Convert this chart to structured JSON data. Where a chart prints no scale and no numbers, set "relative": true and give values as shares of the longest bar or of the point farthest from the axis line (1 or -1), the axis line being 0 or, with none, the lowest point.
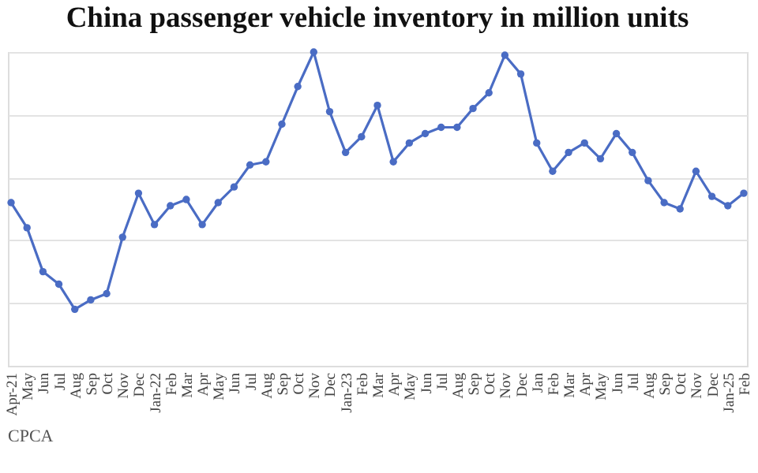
{
  "chart_data": {
    "type": "line",
    "title": "China passenger vehicle inventory in million units",
    "categories": [
      "Apr-21",
      "May",
      "Jun",
      "Jul",
      "Aug",
      "Sep",
      "Oct",
      "Nov",
      "Dec",
      "Jan-22",
      "Feb",
      "Mar",
      "Apr",
      "May",
      "Jun",
      "Jul",
      "Aug",
      "Sep",
      "Oct",
      "Nov",
      "Dec",
      "Jan-23",
      "Feb",
      "Mar",
      "Apr",
      "May",
      "Jun",
      "Jul",
      "Aug",
      "Sep",
      "Oct",
      "Nov",
      "Dec",
      "Jan",
      "Feb",
      "Mar",
      "Apr",
      "May",
      "Jun",
      "Jul",
      "Aug",
      "Sep",
      "Oct",
      "Nov",
      "Dec",
      "Jan-25",
      "Feb"
    ],
    "series": [
      {
        "color": "#4a6cc4",
        "values": [
          0.52,
          0.44,
          0.3,
          0.26,
          0.18,
          0.21,
          0.23,
          0.41,
          0.55,
          0.45,
          0.51,
          0.53,
          0.45,
          0.52,
          0.57,
          0.64,
          0.65,
          0.77,
          0.89,
          1,
          0.81,
          0.68,
          0.73,
          0.83,
          0.65,
          0.71,
          0.74,
          0.76,
          0.76,
          0.82,
          0.87,
          0.99,
          0.93,
          0.71,
          0.62,
          0.68,
          0.71,
          0.66,
          0.74,
          0.68,
          0.59,
          0.52,
          0.5,
          0.62,
          0.54,
          0.51,
          0.55
        ]
      }
    ],
    "relative": true,
    "grid": "y",
    "marker": "circle",
    "line_style": "solid",
    "annotations": [
      "CPCA"
    ]
  }
}
